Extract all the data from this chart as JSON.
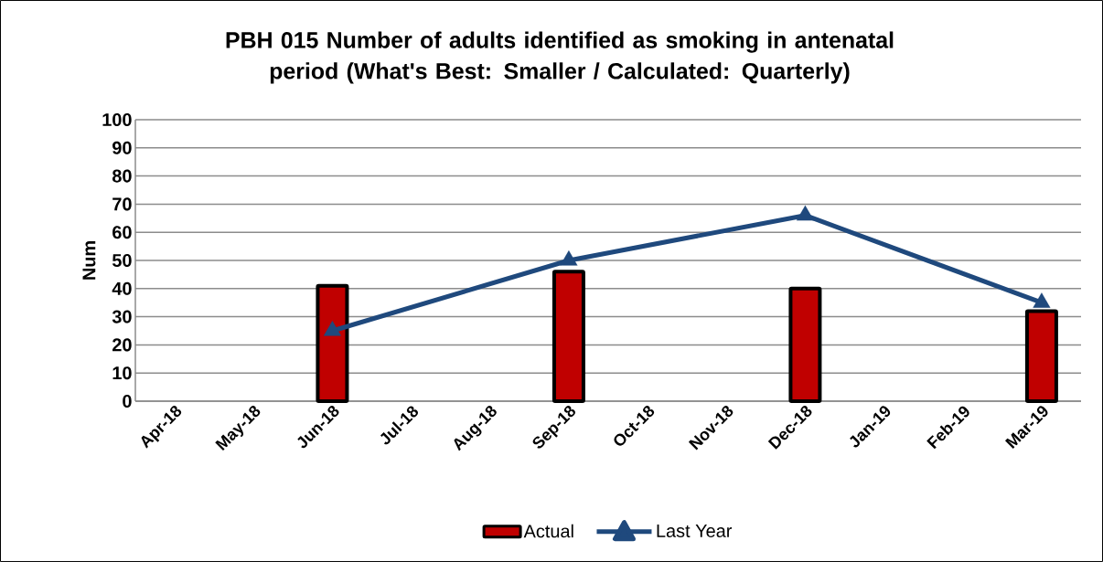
{
  "chart_data": {
    "type": "bar",
    "title": "PBH 015 Number of adults identified as smoking in antenatal period (What's Best: Smaller / Calculated: Quarterly)",
    "ylabel": "Num",
    "categories": [
      "Apr-18",
      "May-18",
      "Jun-18",
      "Jul-18",
      "Aug-18",
      "Sep-18",
      "Oct-18",
      "Nov-18",
      "Dec-18",
      "Jan-19",
      "Feb-19",
      "Mar-19"
    ],
    "series": [
      {
        "name": "Actual",
        "color": "#c00000",
        "values": [
          null,
          null,
          41,
          null,
          null,
          46,
          null,
          null,
          40,
          null,
          null,
          32
        ]
      },
      {
        "name": "Last Year",
        "type": "line",
        "color": "#1f497d",
        "marker": "triangle",
        "values": [
          null,
          null,
          25,
          null,
          null,
          50,
          null,
          null,
          66,
          null,
          null,
          35
        ]
      }
    ],
    "ylim": [
      0,
      100
    ],
    "yticks": [
      0,
      10,
      20,
      30,
      40,
      50,
      60,
      70,
      80,
      90,
      100
    ],
    "grid": "y",
    "legend": "bottom"
  }
}
